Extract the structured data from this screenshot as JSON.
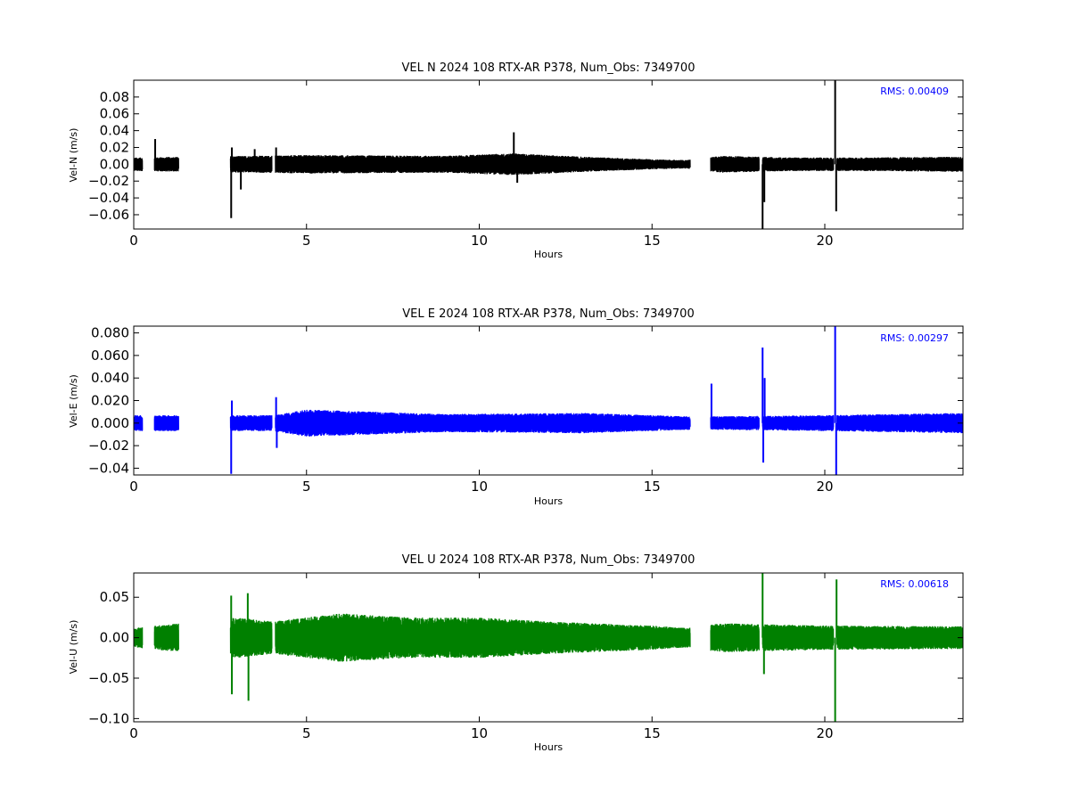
{
  "colors": {
    "background": "#ffffff",
    "axes": "#000000",
    "rms_text": "#0000ff"
  },
  "chart_data": [
    {
      "type": "line",
      "title": "VEL N 2024 108 RTX-AR  P378, Num_Obs: 7349700",
      "xlabel": "Hours",
      "ylabel": "Vel-N (m/s)",
      "xlim": [
        0,
        24
      ],
      "ylim": [
        -0.077,
        0.1
      ],
      "xticks": [
        0,
        5,
        10,
        15,
        20
      ],
      "xtick_labels": [
        "0",
        "5",
        "10",
        "15",
        "20"
      ],
      "yticks": [
        -0.06,
        -0.04,
        -0.02,
        0.0,
        0.02,
        0.04,
        0.06,
        0.08
      ],
      "ytick_labels": [
        "−0.06",
        "−0.04",
        "−0.02",
        "0.00",
        "0.02",
        "0.04",
        "0.06",
        "0.08"
      ],
      "grid": false,
      "color": "#000000",
      "annotation": "RMS:  0.00409",
      "annotation_position": "top-right",
      "segments": [
        [
          0.0,
          0.25
        ],
        [
          0.6,
          1.3
        ],
        [
          2.8,
          4.0
        ],
        [
          4.1,
          16.1
        ],
        [
          16.7,
          18.1
        ],
        [
          18.2,
          20.25
        ],
        [
          20.35,
          24.0
        ]
      ],
      "envelope": [
        [
          0,
          0.008
        ],
        [
          5,
          0.011
        ],
        [
          9,
          0.01
        ],
        [
          11,
          0.013
        ],
        [
          13,
          0.009
        ],
        [
          15,
          0.006
        ],
        [
          16,
          0.005
        ],
        [
          17,
          0.01
        ],
        [
          19,
          0.008
        ],
        [
          21,
          0.008
        ],
        [
          24,
          0.009
        ]
      ],
      "spikes": [
        {
          "x": 0.62,
          "y": 0.03
        },
        {
          "x": 2.82,
          "y": -0.064
        },
        {
          "x": 2.84,
          "y": 0.02
        },
        {
          "x": 3.1,
          "y": -0.03
        },
        {
          "x": 3.5,
          "y": 0.018
        },
        {
          "x": 4.12,
          "y": 0.02
        },
        {
          "x": 11.0,
          "y": 0.038
        },
        {
          "x": 11.1,
          "y": -0.022
        },
        {
          "x": 18.2,
          "y": -0.077
        },
        {
          "x": 18.25,
          "y": -0.045
        },
        {
          "x": 20.3,
          "y": 0.1
        },
        {
          "x": 20.33,
          "y": -0.056
        }
      ]
    },
    {
      "type": "line",
      "title": "VEL E 2024 108 RTX-AR  P378, Num_Obs: 7349700",
      "xlabel": "Hours",
      "ylabel": "Vel-E (m/s)",
      "xlim": [
        0,
        24
      ],
      "ylim": [
        -0.046,
        0.086
      ],
      "xticks": [
        0,
        5,
        10,
        15,
        20
      ],
      "xtick_labels": [
        "0",
        "5",
        "10",
        "15",
        "20"
      ],
      "yticks": [
        -0.04,
        -0.02,
        0.0,
        0.02,
        0.04,
        0.06,
        0.08
      ],
      "ytick_labels": [
        "−0.04",
        "−0.02",
        "0.000",
        "0.020",
        "0.040",
        "0.060",
        "0.080"
      ],
      "grid": false,
      "color": "#0000ff",
      "annotation": "RMS:  0.00297",
      "annotation_position": "top-right",
      "segments": [
        [
          0.0,
          0.25
        ],
        [
          0.6,
          1.3
        ],
        [
          2.8,
          4.0
        ],
        [
          4.1,
          16.1
        ],
        [
          16.7,
          18.1
        ],
        [
          18.2,
          20.25
        ],
        [
          20.35,
          24.0
        ]
      ],
      "envelope": [
        [
          0,
          0.007
        ],
        [
          4,
          0.007
        ],
        [
          5,
          0.012
        ],
        [
          6,
          0.011
        ],
        [
          9,
          0.008
        ],
        [
          13,
          0.009
        ],
        [
          15,
          0.007
        ],
        [
          16,
          0.006
        ],
        [
          17,
          0.006
        ],
        [
          20,
          0.007
        ],
        [
          24,
          0.009
        ]
      ],
      "spikes": [
        {
          "x": 2.82,
          "y": -0.045
        },
        {
          "x": 2.84,
          "y": 0.02
        },
        {
          "x": 4.12,
          "y": 0.023
        },
        {
          "x": 4.14,
          "y": -0.022
        },
        {
          "x": 16.72,
          "y": 0.035
        },
        {
          "x": 18.2,
          "y": 0.067
        },
        {
          "x": 18.22,
          "y": -0.035
        },
        {
          "x": 18.26,
          "y": 0.04
        },
        {
          "x": 20.3,
          "y": 0.086
        },
        {
          "x": 20.33,
          "y": -0.046
        }
      ]
    },
    {
      "type": "line",
      "title": "VEL U 2024 108 RTX-AR  P378, Num_Obs: 7349700",
      "xlabel": "Hours",
      "ylabel": "Vel-U (m/s)",
      "xlim": [
        0,
        24
      ],
      "ylim": [
        -0.104,
        0.08
      ],
      "xticks": [
        0,
        5,
        10,
        15,
        20
      ],
      "xtick_labels": [
        "0",
        "5",
        "10",
        "15",
        "20"
      ],
      "yticks": [
        -0.1,
        -0.05,
        0.0,
        0.05
      ],
      "ytick_labels": [
        "−0.10",
        "−0.05",
        "0.00",
        "0.05"
      ],
      "grid": false,
      "color": "#008000",
      "annotation": "RMS:  0.00618",
      "annotation_position": "top-right",
      "segments": [
        [
          0.0,
          0.25
        ],
        [
          0.6,
          1.3
        ],
        [
          2.8,
          4.0
        ],
        [
          4.1,
          16.1
        ],
        [
          16.7,
          18.1
        ],
        [
          18.2,
          20.25
        ],
        [
          20.35,
          24.0
        ]
      ],
      "envelope": [
        [
          0,
          0.012
        ],
        [
          3,
          0.025
        ],
        [
          4,
          0.02
        ],
        [
          6,
          0.03
        ],
        [
          8,
          0.025
        ],
        [
          10,
          0.025
        ],
        [
          12,
          0.02
        ],
        [
          15,
          0.015
        ],
        [
          16,
          0.012
        ],
        [
          17,
          0.018
        ],
        [
          20,
          0.015
        ],
        [
          24,
          0.014
        ]
      ],
      "spikes": [
        {
          "x": 2.82,
          "y": 0.052
        },
        {
          "x": 2.84,
          "y": -0.07
        },
        {
          "x": 3.3,
          "y": 0.055
        },
        {
          "x": 3.32,
          "y": -0.078
        },
        {
          "x": 18.2,
          "y": 0.08
        },
        {
          "x": 18.24,
          "y": -0.045
        },
        {
          "x": 20.3,
          "y": -0.104
        },
        {
          "x": 20.34,
          "y": 0.072
        }
      ]
    }
  ]
}
